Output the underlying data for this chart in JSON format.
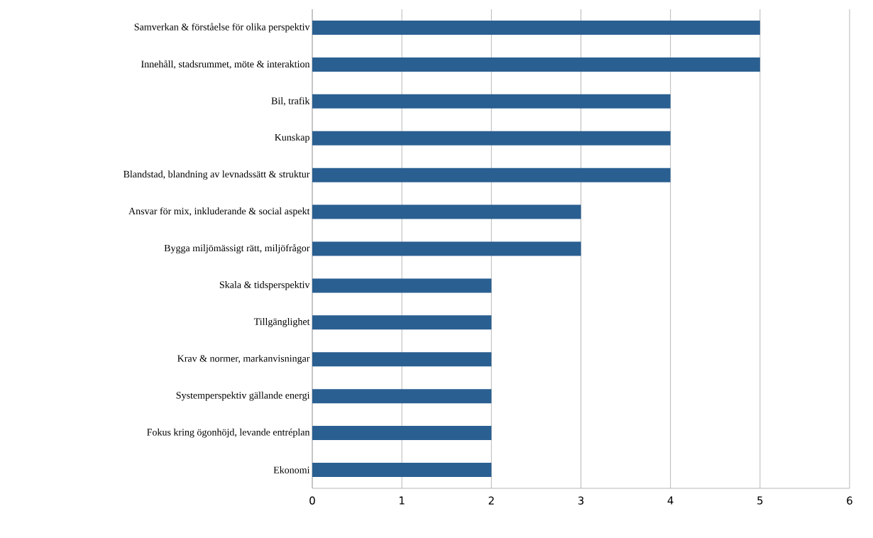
{
  "chart_data": {
    "type": "bar",
    "orientation": "horizontal",
    "categories": [
      "Samverkan & förståelse för olika perspektiv",
      "Innehåll, stadsrummet, möte & interaktion",
      "Bil, trafik",
      "Kunskap",
      "Blandstad, blandning av levnadssätt & struktur",
      "Ansvar för mix, inkluderande & social aspekt",
      "Bygga miljömässigt rätt, miljöfrågor",
      "Skala & tidsperspektiv",
      "Tillgänglighet",
      "Krav & normer, markanvisningar",
      "Systemperspektiv gällande energi",
      "Fokus kring ögonhöjd, levande entréplan",
      "Ekonomi"
    ],
    "values": [
      5,
      5,
      4,
      4,
      4,
      3,
      3,
      2,
      2,
      2,
      2,
      2,
      2
    ],
    "color": "#2a5f91",
    "xlim": [
      0,
      6
    ],
    "xticks": [
      0,
      1,
      2,
      3,
      4,
      5,
      6
    ],
    "grid": "x"
  }
}
